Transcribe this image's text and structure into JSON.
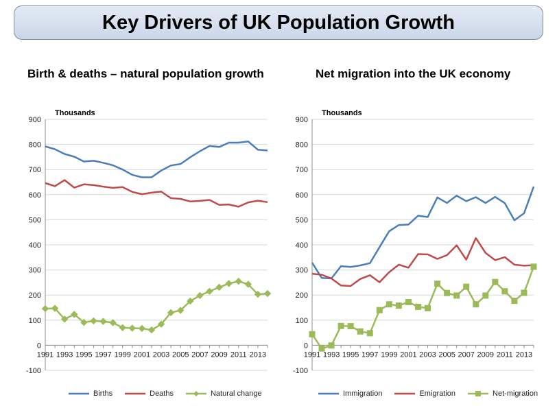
{
  "page": {
    "title": "Key Drivers of UK Population Growth",
    "left_subtitle": "Birth & deaths – natural population growth",
    "right_subtitle": "Net migration into the UK economy"
  },
  "chart_data": [
    {
      "type": "line",
      "ylabel": "Thousands",
      "ylim": [
        -100,
        900
      ],
      "yticks": [
        -100,
        0,
        100,
        200,
        300,
        400,
        500,
        600,
        700,
        800,
        900
      ],
      "x": [
        1991,
        1992,
        1993,
        1994,
        1995,
        1996,
        1997,
        1998,
        1999,
        2000,
        2001,
        2002,
        2003,
        2004,
        2005,
        2006,
        2007,
        2008,
        2009,
        2010,
        2011,
        2012,
        2013,
        2014
      ],
      "xtick_labels": [
        "1991",
        "1993",
        "1995",
        "1997",
        "1999",
        "2001",
        "2003",
        "2005",
        "2007",
        "2009",
        "2011",
        "2013"
      ],
      "legend_position": "bottom",
      "grid": "horizontal",
      "series": [
        {
          "name": "Births",
          "color": "#4a7ebb",
          "marker": "none",
          "values": [
            792,
            781,
            762,
            751,
            732,
            735,
            727,
            717,
            700,
            679,
            669,
            669,
            696,
            716,
            722,
            749,
            773,
            794,
            790,
            807,
            807,
            812,
            779,
            776
          ]
        },
        {
          "name": "Deaths",
          "color": "#be4b48",
          "marker": "none",
          "values": [
            646,
            634,
            658,
            628,
            641,
            638,
            632,
            627,
            630,
            611,
            602,
            608,
            612,
            586,
            583,
            573,
            575,
            579,
            559,
            561,
            552,
            569,
            576,
            570
          ]
        },
        {
          "name": "Natural change",
          "color": "#9bbb59",
          "marker": "diamond",
          "values": [
            146,
            147,
            104,
            123,
            91,
            97,
            95,
            90,
            70,
            68,
            67,
            61,
            84,
            130,
            139,
            176,
            198,
            215,
            231,
            246,
            255,
            243,
            203,
            206
          ]
        }
      ]
    },
    {
      "type": "line",
      "ylabel": "Thousands",
      "ylim": [
        -100,
        900
      ],
      "yticks": [
        -100,
        0,
        100,
        200,
        300,
        400,
        500,
        600,
        700,
        800,
        900
      ],
      "x": [
        1991,
        1992,
        1993,
        1994,
        1995,
        1996,
        1997,
        1998,
        1999,
        2000,
        2001,
        2002,
        2003,
        2004,
        2005,
        2006,
        2007,
        2008,
        2009,
        2010,
        2011,
        2012,
        2013,
        2014
      ],
      "xtick_labels": [
        "1991",
        "1993",
        "1995",
        "1997",
        "1999",
        "2001",
        "2003",
        "2005",
        "2007",
        "2009",
        "2011",
        "2013"
      ],
      "legend_position": "bottom",
      "grid": "horizontal",
      "series": [
        {
          "name": "Immigration",
          "color": "#4a7ebb",
          "marker": "none",
          "values": [
            329,
            268,
            266,
            315,
            312,
            318,
            327,
            391,
            454,
            479,
            481,
            516,
            511,
            589,
            567,
            596,
            574,
            590,
            567,
            591,
            566,
            498,
            526,
            632
          ]
        },
        {
          "name": "Emigration",
          "color": "#be4b48",
          "marker": "none",
          "values": [
            285,
            281,
            266,
            238,
            236,
            264,
            279,
            251,
            291,
            321,
            309,
            363,
            362,
            344,
            359,
            398,
            341,
            427,
            368,
            339,
            351,
            321,
            317,
            319
          ]
        },
        {
          "name": "Net-migration",
          "color": "#9bbb59",
          "marker": "square",
          "values": [
            44,
            -13,
            -1,
            77,
            76,
            55,
            48,
            140,
            163,
            158,
            172,
            153,
            148,
            245,
            208,
            198,
            233,
            163,
            198,
            252,
            215,
            177,
            209,
            313
          ]
        }
      ]
    }
  ]
}
